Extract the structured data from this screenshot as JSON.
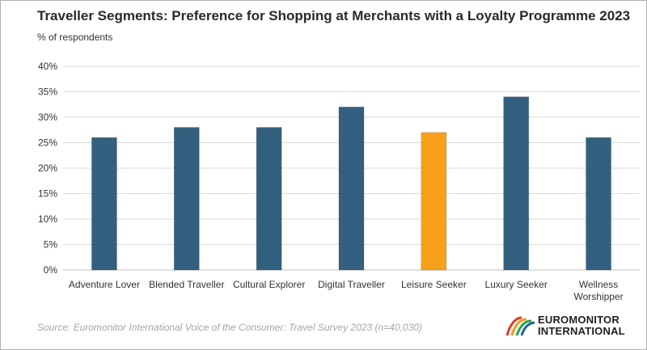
{
  "title": "Traveller Segments: Preference for Shopping at Merchants with a Loyalty Programme 2023",
  "subtitle": "% of respondents",
  "source": "Source: Euromonitor International Voice of the Consumer: Travel Survey 2023 (n=40,030)",
  "logo": {
    "line1": "EUROMONITOR",
    "line2": "INTERNATIONAL"
  },
  "colors": {
    "bar": "#34607f",
    "highlight": "#f7a11b",
    "grid": "#d9d9d9",
    "axis_text": "#333333"
  },
  "chart_data": {
    "type": "bar",
    "categories": [
      [
        "Adventure Lover"
      ],
      [
        "Blended Traveller"
      ],
      [
        "Cultural Explorer"
      ],
      [
        "Digital Traveller"
      ],
      [
        "Leisure Seeker"
      ],
      [
        "Luxury Seeker"
      ],
      [
        "Wellness",
        "Worshipper"
      ]
    ],
    "values": [
      26,
      28,
      28,
      32,
      27,
      34,
      26
    ],
    "highlight_index": 4,
    "ylim": [
      0,
      40
    ],
    "yticks": [
      0,
      5,
      10,
      15,
      20,
      25,
      30,
      35,
      40
    ],
    "ytick_labels": [
      "0%",
      "5%",
      "10%",
      "15%",
      "20%",
      "25%",
      "30%",
      "35%",
      "40%"
    ],
    "grid": true
  }
}
